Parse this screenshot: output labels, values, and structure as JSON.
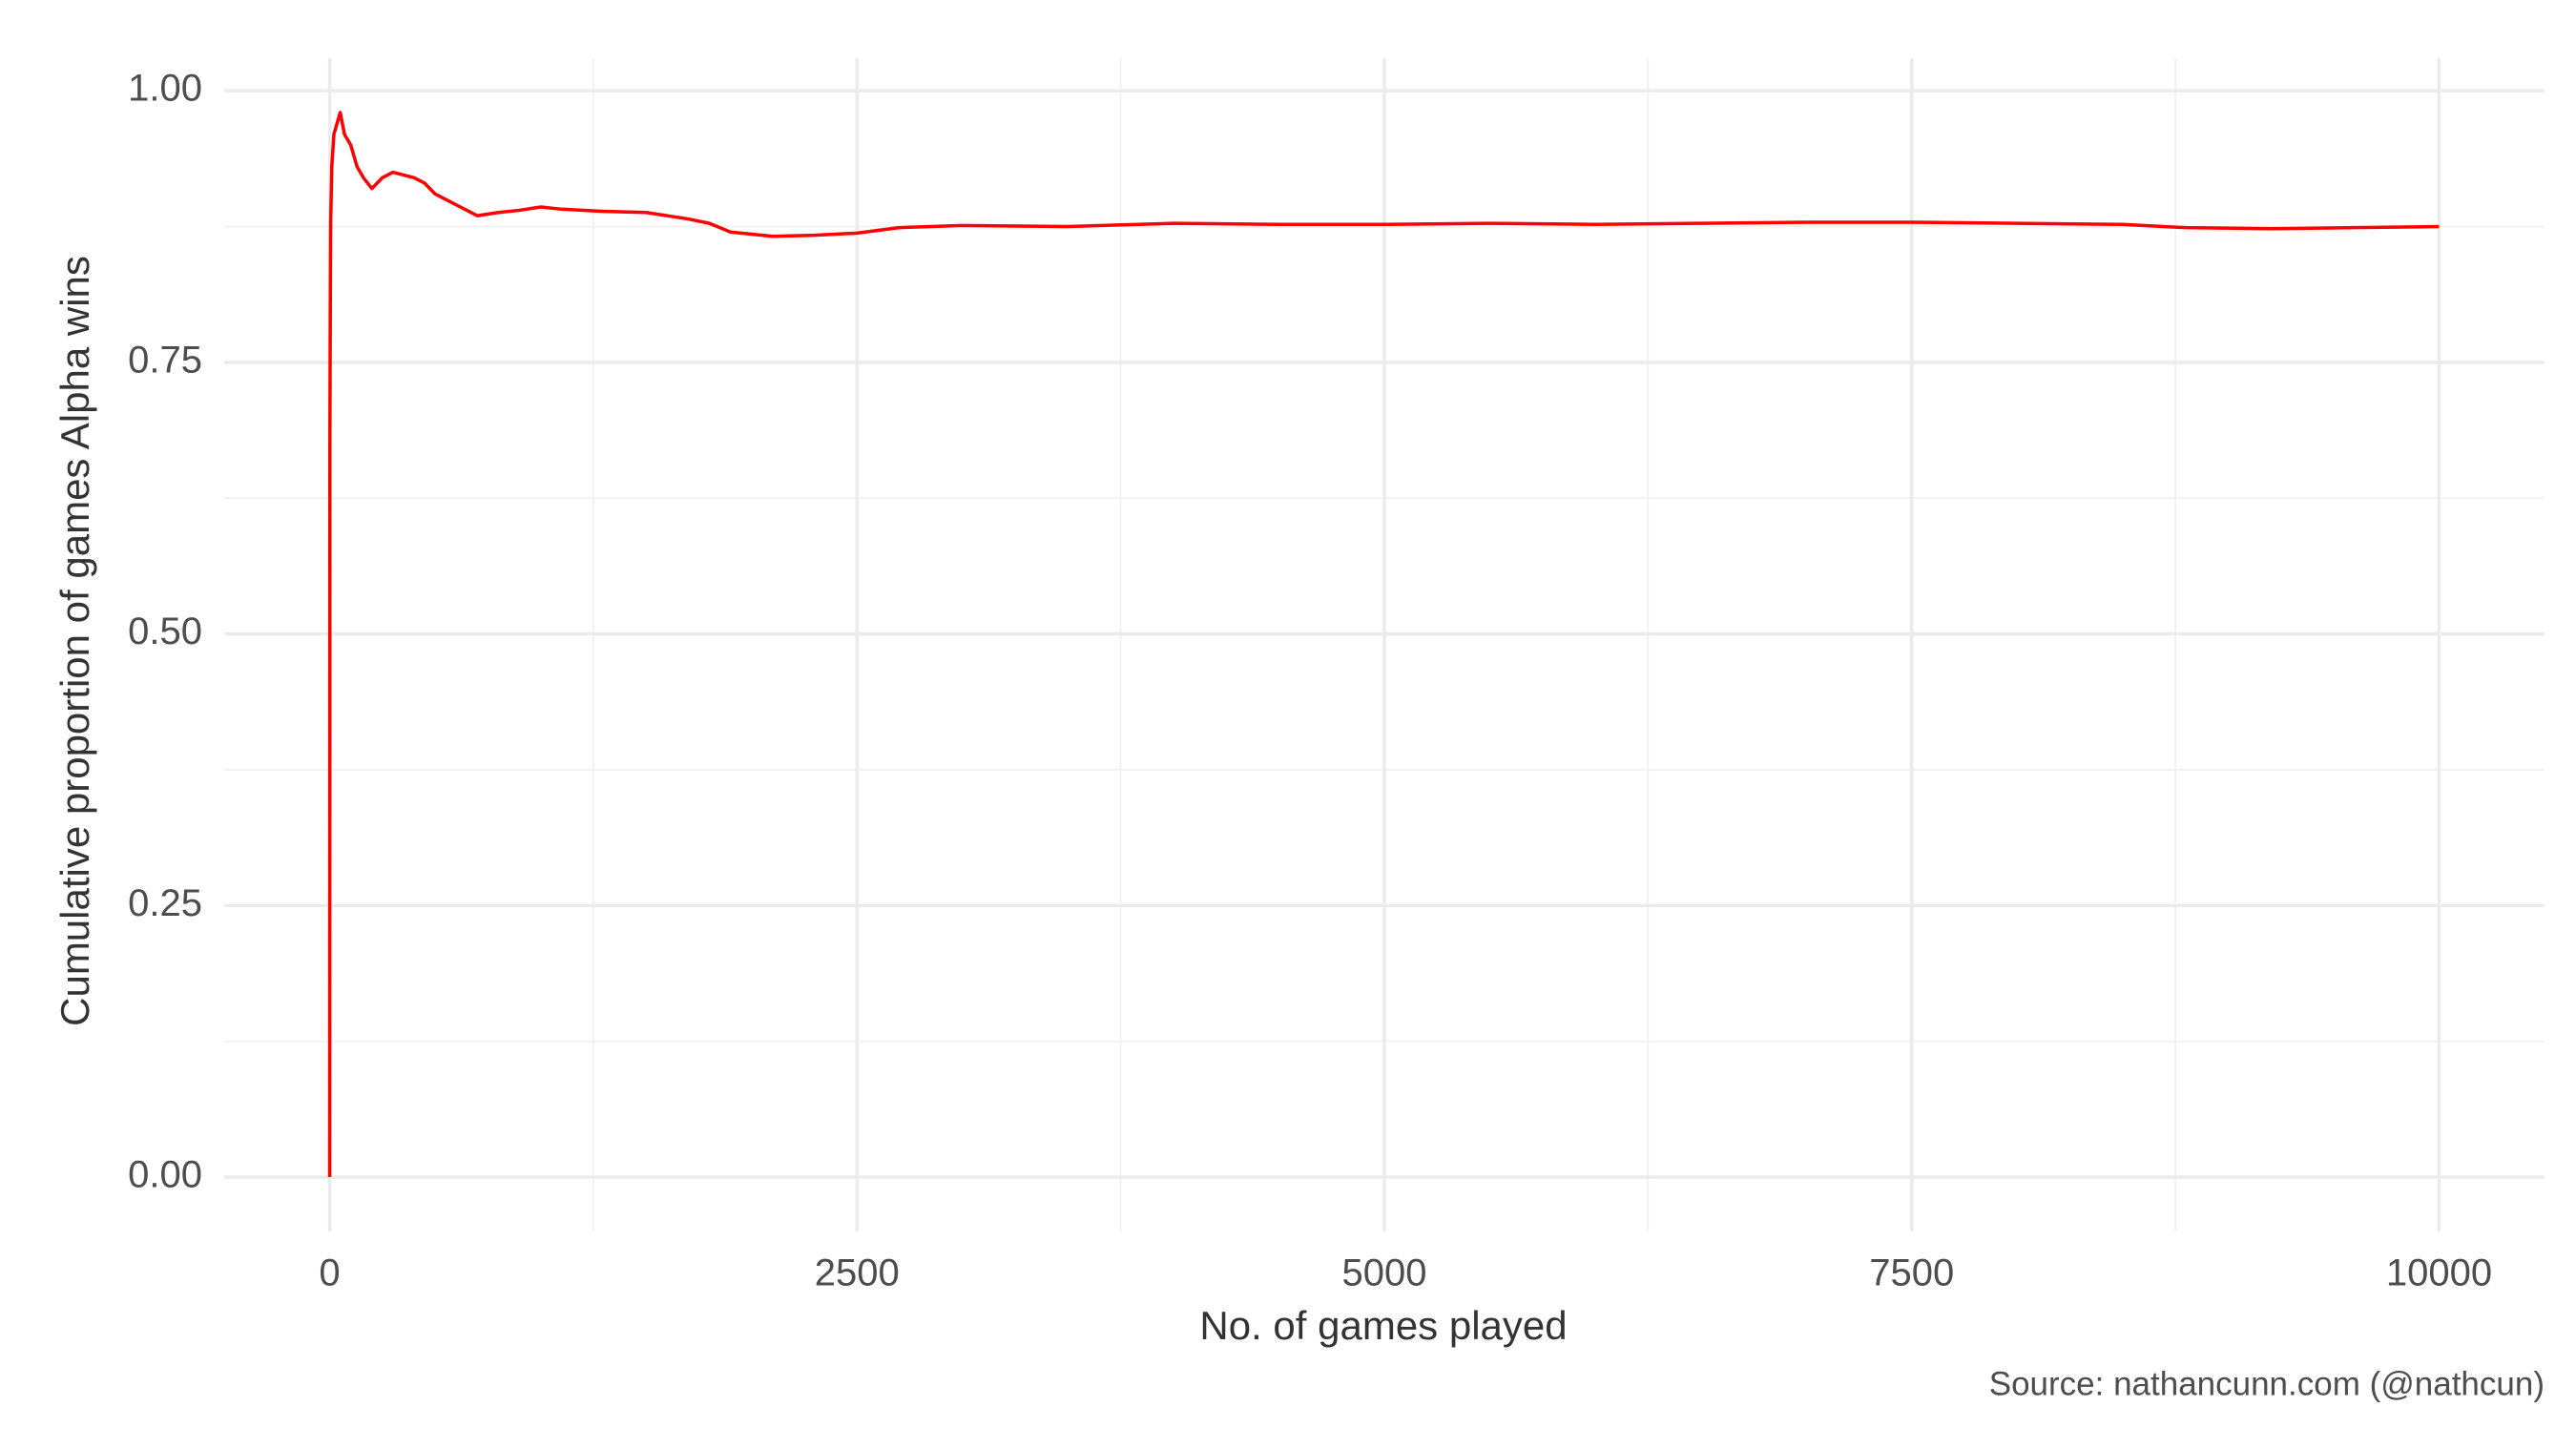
{
  "chart_data": {
    "type": "line",
    "x_label": "No. of games played",
    "y_label": "Cumulative proportion of games Alpha wins",
    "caption": "Source: nathancunn.com (@nathcun)",
    "series": [
      {
        "name": "Alpha",
        "color": "#ff0000",
        "x": [
          0,
          1,
          3,
          5,
          10,
          20,
          35,
          50,
          70,
          100,
          130,
          160,
          200,
          250,
          300,
          400,
          450,
          500,
          550,
          600,
          700,
          800,
          900,
          1000,
          1100,
          1300,
          1500,
          1700,
          1800,
          1900,
          2000,
          2100,
          2300,
          2500,
          2700,
          3000,
          3500,
          4000,
          4500,
          5000,
          5500,
          6000,
          6500,
          7000,
          7500,
          8000,
          8500,
          8800,
          9200,
          9600,
          10000
        ],
        "values": [
          0,
          0.67,
          0.8,
          0.88,
          0.93,
          0.96,
          0.97,
          0.98,
          0.96,
          0.95,
          0.93,
          0.92,
          0.91,
          0.92,
          0.925,
          0.92,
          0.915,
          0.905,
          0.9,
          0.895,
          0.885,
          0.888,
          0.89,
          0.893,
          0.891,
          0.889,
          0.888,
          0.882,
          0.878,
          0.87,
          0.868,
          0.866,
          0.867,
          0.869,
          0.874,
          0.876,
          0.875,
          0.878,
          0.877,
          0.877,
          0.878,
          0.877,
          0.878,
          0.879,
          0.879,
          0.878,
          0.877,
          0.874,
          0.873,
          0.874,
          0.875
        ]
      }
    ],
    "xlim": [
      -500,
      10500
    ],
    "ylim": [
      -0.05,
      1.03
    ],
    "xticks": [
      0,
      2500,
      5000,
      7500,
      10000
    ],
    "yticks": [
      {
        "value": 0,
        "label": "0.00"
      },
      {
        "value": 0.25,
        "label": "0.25"
      },
      {
        "value": 0.5,
        "label": "0.50"
      },
      {
        "value": 0.75,
        "label": "0.75"
      },
      {
        "value": 1,
        "label": "1.00"
      }
    ],
    "xminorticks": [
      1250,
      3750,
      6250,
      8750
    ],
    "yminorticks": [
      0.125,
      0.375,
      0.625,
      0.875
    ],
    "grid": true
  }
}
